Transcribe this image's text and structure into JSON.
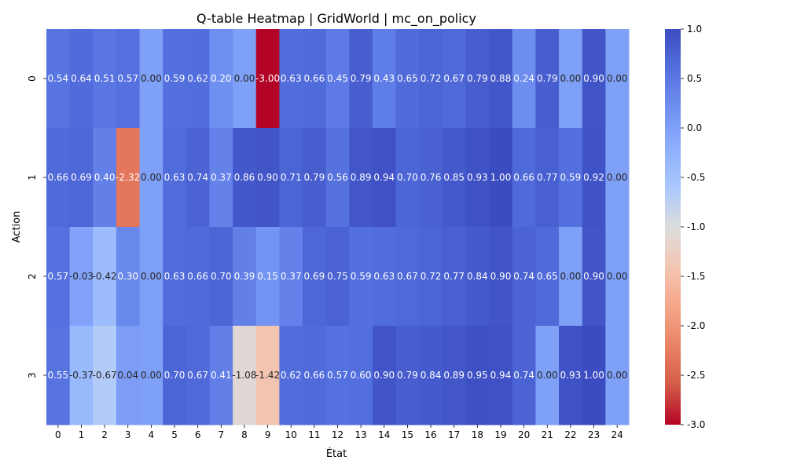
{
  "chart_data": {
    "type": "heatmap",
    "title": "Q-table Heatmap | GridWorld | mc_on_policy",
    "xlabel": "État",
    "ylabel": "Action",
    "x_categories": [
      "0",
      "1",
      "2",
      "3",
      "4",
      "5",
      "6",
      "7",
      "8",
      "9",
      "10",
      "11",
      "12",
      "13",
      "14",
      "15",
      "16",
      "17",
      "18",
      "19",
      "20",
      "21",
      "22",
      "23",
      "24"
    ],
    "y_categories": [
      "0",
      "1",
      "2",
      "3"
    ],
    "values": [
      [
        0.54,
        0.64,
        0.51,
        0.57,
        0.0,
        0.59,
        0.62,
        0.2,
        0.0,
        -3.0,
        0.63,
        0.66,
        0.45,
        0.79,
        0.43,
        0.65,
        0.72,
        0.67,
        0.79,
        0.88,
        0.24,
        0.79,
        0.0,
        0.9,
        0.0
      ],
      [
        0.66,
        0.69,
        0.4,
        -2.32,
        0.0,
        0.63,
        0.74,
        0.37,
        0.86,
        0.9,
        0.71,
        0.79,
        0.56,
        0.89,
        0.94,
        0.7,
        0.76,
        0.85,
        0.93,
        1.0,
        0.66,
        0.77,
        0.59,
        0.92,
        0.0
      ],
      [
        0.57,
        -0.03,
        -0.42,
        0.3,
        0.0,
        0.63,
        0.66,
        0.7,
        0.39,
        0.15,
        0.37,
        0.69,
        0.75,
        0.59,
        0.63,
        0.67,
        0.72,
        0.77,
        0.84,
        0.9,
        0.74,
        0.65,
        0.0,
        0.9,
        0.0
      ],
      [
        0.55,
        -0.37,
        -0.67,
        0.04,
        0.0,
        0.7,
        0.67,
        0.41,
        -1.08,
        -1.42,
        0.62,
        0.66,
        0.57,
        0.6,
        0.9,
        0.79,
        0.84,
        0.89,
        0.95,
        0.94,
        0.74,
        0.0,
        0.93,
        1.0,
        0.0
      ]
    ],
    "labels": [
      [
        "0.54",
        "0.64",
        "0.51",
        "0.57",
        "0.00",
        "0.59",
        "0.62",
        "0.20",
        "0.00",
        "-3.00",
        "0.63",
        "0.66",
        "0.45",
        "0.79",
        "0.43",
        "0.65",
        "0.72",
        "0.67",
        "0.79",
        "0.88",
        "0.24",
        "0.79",
        "0.00",
        "0.90",
        "0.00"
      ],
      [
        "0.66",
        "0.69",
        "0.40",
        "-2.32",
        "0.00",
        "0.63",
        "0.74",
        "0.37",
        "0.86",
        "0.90",
        "0.71",
        "0.79",
        "0.56",
        "0.89",
        "0.94",
        "0.70",
        "0.76",
        "0.85",
        "0.93",
        "1.00",
        "0.66",
        "0.77",
        "0.59",
        "0.92",
        "0.00"
      ],
      [
        "0.57",
        "-0.03",
        "-0.42",
        "0.30",
        "0.00",
        "0.63",
        "0.66",
        "0.70",
        "0.39",
        "0.15",
        "0.37",
        "0.69",
        "0.75",
        "0.59",
        "0.63",
        "0.67",
        "0.72",
        "0.77",
        "0.84",
        "0.90",
        "0.74",
        "0.65",
        "0.00",
        "0.90",
        "0.00"
      ],
      [
        "0.55",
        "-0.37",
        "-0.67",
        "0.04",
        "0.00",
        "0.70",
        "0.67",
        "0.41",
        "-1.08",
        "-1.42",
        "0.62",
        "0.66",
        "0.57",
        "0.60",
        "0.90",
        "0.79",
        "0.84",
        "0.89",
        "0.95",
        "0.94",
        "0.74",
        "0.00",
        "0.93",
        "1.00",
        "0.00"
      ]
    ],
    "colormap": "coolwarm_r",
    "vmin": -3.0,
    "vmax": 1.0,
    "colorbar_ticks": [
      "1.0",
      "0.5",
      "0.0",
      "-0.5",
      "-1.0",
      "-1.5",
      "-2.0",
      "-2.5",
      "-3.0"
    ],
    "colorbar_tick_values": [
      1.0,
      0.5,
      0.0,
      -0.5,
      -1.0,
      -1.5,
      -2.0,
      -2.5,
      -3.0
    ],
    "grid": false,
    "legend": "colorbar-right"
  }
}
